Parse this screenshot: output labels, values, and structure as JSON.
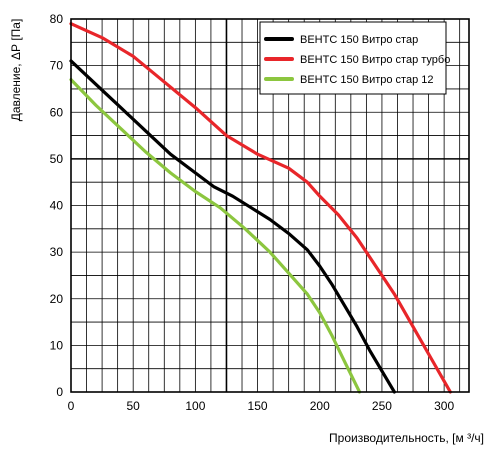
{
  "chart_data": {
    "type": "line",
    "title": "",
    "xlabel": "Производительность, [м ³/ч]",
    "ylabel": "Давление, ΔР [Па]",
    "xlim": [
      0,
      320
    ],
    "ylim": [
      0,
      80
    ],
    "x_ticks": [
      0,
      50,
      100,
      150,
      200,
      250,
      300
    ],
    "y_ticks": [
      0,
      10,
      20,
      30,
      40,
      50,
      60,
      70,
      80
    ],
    "x_minor_step": 12.5,
    "y_minor_step": 5,
    "grid": true,
    "legend_position": "top-right",
    "series": [
      {
        "name": "ВЕНТС 150 Витро стар",
        "color": "#000000",
        "x": [
          0,
          20,
          40,
          60,
          80,
          100,
          115,
          130,
          145,
          160,
          175,
          190,
          200,
          210,
          220,
          230,
          240,
          250,
          260
        ],
        "y": [
          71,
          66,
          61,
          56,
          51,
          47,
          44,
          42,
          39.5,
          37,
          34,
          30.5,
          27,
          23,
          18.5,
          14,
          9,
          4.5,
          0
        ]
      },
      {
        "name": "ВЕНТС 150 Витро стар турбо",
        "color": "#e8262a",
        "x": [
          0,
          25,
          50,
          75,
          100,
          125,
          150,
          175,
          190,
          200,
          215,
          230,
          245,
          260,
          275,
          290,
          305
        ],
        "y": [
          79,
          76,
          72,
          66.5,
          61,
          55,
          51,
          48,
          45,
          42,
          38,
          33,
          27,
          21,
          14,
          7,
          0
        ]
      },
      {
        "name": "ВЕНТС 150 Витро стар 12",
        "color": "#8cc63f",
        "x": [
          0,
          20,
          40,
          60,
          80,
          100,
          120,
          140,
          160,
          175,
          190,
          200,
          210,
          220,
          232
        ],
        "y": [
          67,
          61.5,
          56.5,
          51.5,
          47,
          43,
          39.5,
          35,
          30,
          25.5,
          21,
          17,
          12,
          6.5,
          0
        ]
      }
    ]
  }
}
